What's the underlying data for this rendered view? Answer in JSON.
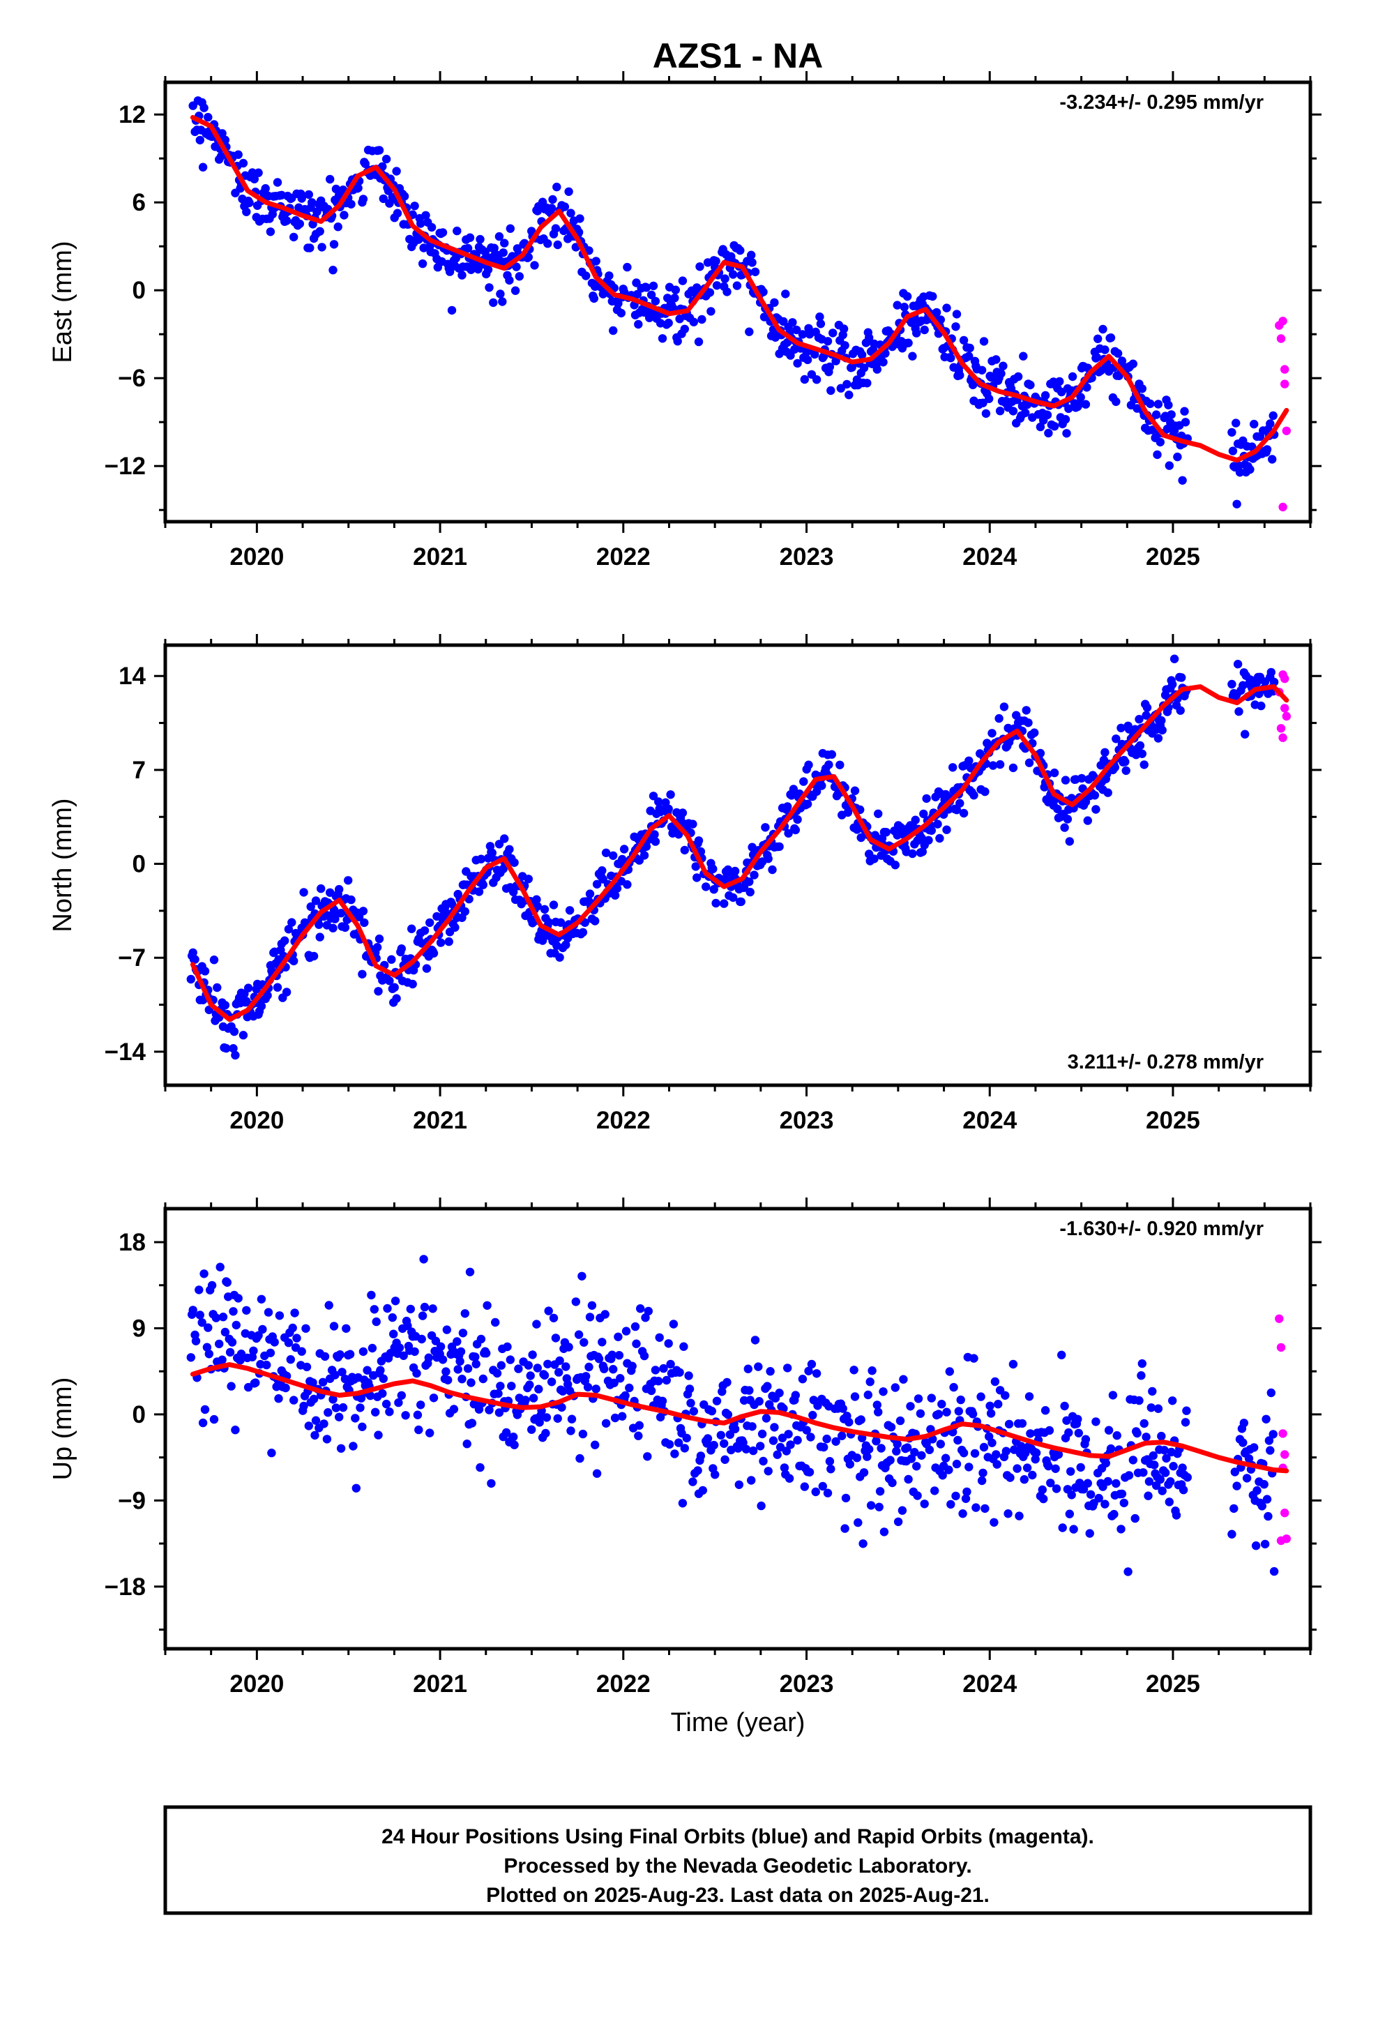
{
  "title": "AZS1 - NA",
  "xlabel": "Time (year)",
  "footer": {
    "line1": "24 Hour Positions Using Final Orbits (blue) and Rapid Orbits (magenta).",
    "line2": "Processed by the Nevada Geodetic Laboratory.",
    "line3": "Plotted on 2025-Aug-23. Last data on 2025-Aug-21."
  },
  "colors": {
    "final": "#0000ff",
    "rapid": "#ff00ff",
    "model": "#ff0000",
    "frame": "#000000"
  },
  "chart_data": [
    {
      "type": "scatter",
      "ylabel": "East (mm)",
      "rate": "-3.234+/- 0.295 mm/yr",
      "rate_position": "top-right",
      "xlim": [
        2019.5,
        2025.75
      ],
      "ylim": [
        -15.8,
        14.2
      ],
      "xticks": [
        2020,
        2021,
        2022,
        2023,
        2024,
        2025
      ],
      "xtick_labels": [
        "2020",
        "2021",
        "2022",
        "2023",
        "2024",
        "2025"
      ],
      "yticks": [
        12,
        6,
        0,
        -6,
        -12
      ],
      "ytick_labels": [
        "12",
        "6",
        "0",
        "−6",
        "−12"
      ],
      "series": [
        {
          "x": [
            2019.65,
            2019.75,
            2019.85,
            2019.95,
            2020.05,
            2020.15,
            2020.25,
            2020.35,
            2020.45,
            2020.55,
            2020.65,
            2020.75,
            2020.85,
            2020.95,
            2021.05,
            2021.15,
            2021.25,
            2021.35,
            2021.45,
            2021.55,
            2021.65,
            2021.75,
            2021.85,
            2021.95,
            2022.05,
            2022.15,
            2022.25,
            2022.35,
            2022.45,
            2022.55,
            2022.65,
            2022.75,
            2022.85,
            2022.95,
            2023.05,
            2023.15,
            2023.25,
            2023.35,
            2023.45,
            2023.55,
            2023.65,
            2023.75,
            2023.85,
            2023.95,
            2024.05,
            2024.15,
            2024.25,
            2024.35,
            2024.45,
            2024.55,
            2024.65,
            2024.75,
            2024.85,
            2024.95,
            2025.05,
            2025.15,
            2025.25,
            2025.35,
            2025.45,
            2025.55,
            2025.62
          ],
          "y": [
            11.8,
            11.2,
            9.0,
            6.8,
            6.0,
            5.6,
            5.1,
            4.7,
            5.8,
            7.8,
            8.4,
            6.9,
            4.4,
            3.4,
            2.9,
            2.4,
            1.9,
            1.5,
            2.4,
            4.3,
            5.4,
            3.5,
            0.9,
            -0.3,
            -0.6,
            -1.1,
            -1.6,
            -1.4,
            0.2,
            1.9,
            1.6,
            -0.6,
            -2.7,
            -3.6,
            -4.0,
            -4.4,
            -4.9,
            -4.7,
            -3.6,
            -1.8,
            -1.3,
            -2.9,
            -5.0,
            -6.4,
            -6.9,
            -7.2,
            -7.6,
            -7.9,
            -7.3,
            -5.6,
            -4.5,
            -5.9,
            -8.3,
            -9.9,
            -10.3,
            -10.6,
            -11.2,
            -11.6,
            -11.0,
            -9.6,
            -8.2
          ]
        }
      ],
      "rapid_points": [
        [
          2025.58,
          -2.4
        ],
        [
          2025.59,
          -3.3
        ],
        [
          2025.6,
          -2.1
        ],
        [
          2025.61,
          -5.4
        ],
        [
          2025.61,
          -6.4
        ],
        [
          2025.62,
          -9.6
        ],
        [
          2025.6,
          -14.8
        ]
      ]
    },
    {
      "type": "scatter",
      "ylabel": "North (mm)",
      "rate": "3.211+/- 0.278 mm/yr",
      "rate_position": "bottom-right",
      "xlim": [
        2019.5,
        2025.75
      ],
      "ylim": [
        -16.5,
        16.3
      ],
      "xticks": [
        2020,
        2021,
        2022,
        2023,
        2024,
        2025
      ],
      "xtick_labels": [
        "2020",
        "2021",
        "2022",
        "2023",
        "2024",
        "2025"
      ],
      "yticks": [
        14,
        7,
        0,
        -7,
        -14
      ],
      "ytick_labels": [
        "14",
        "7",
        "0",
        "−7",
        "−14"
      ],
      "series": [
        {
          "x": [
            2019.65,
            2019.75,
            2019.85,
            2019.95,
            2020.05,
            2020.15,
            2020.25,
            2020.35,
            2020.45,
            2020.55,
            2020.65,
            2020.75,
            2020.85,
            2020.95,
            2021.05,
            2021.15,
            2021.25,
            2021.35,
            2021.45,
            2021.55,
            2021.65,
            2021.75,
            2021.85,
            2021.95,
            2022.05,
            2022.15,
            2022.25,
            2022.35,
            2022.45,
            2022.55,
            2022.65,
            2022.75,
            2022.85,
            2022.95,
            2023.05,
            2023.15,
            2023.25,
            2023.35,
            2023.45,
            2023.55,
            2023.65,
            2023.75,
            2023.85,
            2023.95,
            2024.05,
            2024.15,
            2024.25,
            2024.35,
            2024.45,
            2024.55,
            2024.65,
            2024.75,
            2024.85,
            2024.95,
            2025.05,
            2025.15,
            2025.25,
            2025.35,
            2025.45,
            2025.55,
            2025.62
          ],
          "y": [
            -7.5,
            -10.5,
            -11.6,
            -10.9,
            -9.2,
            -7.3,
            -5.3,
            -3.6,
            -2.7,
            -4.6,
            -7.6,
            -8.3,
            -7.3,
            -5.8,
            -4.1,
            -2.1,
            -0.3,
            0.4,
            -1.9,
            -4.6,
            -5.3,
            -4.4,
            -2.9,
            -1.3,
            0.5,
            2.6,
            3.6,
            2.1,
            -0.7,
            -1.7,
            -1.1,
            0.9,
            2.5,
            4.4,
            6.3,
            6.5,
            4.3,
            1.8,
            1.1,
            1.9,
            2.9,
            4.2,
            5.5,
            7.5,
            9.1,
            9.9,
            8.1,
            5.2,
            4.4,
            5.6,
            7.3,
            8.8,
            10.3,
            11.8,
            13.0,
            13.2,
            12.4,
            12.0,
            13.0,
            13.2,
            12.2
          ]
        }
      ],
      "rapid_points": [
        [
          2025.58,
          12.8
        ],
        [
          2025.59,
          10.1
        ],
        [
          2025.6,
          9.4
        ],
        [
          2025.61,
          13.8
        ],
        [
          2025.61,
          11.6
        ],
        [
          2025.62,
          11.0
        ],
        [
          2025.6,
          14.1
        ]
      ]
    },
    {
      "type": "scatter",
      "ylabel": "Up (mm)",
      "rate": "-1.630+/- 0.920 mm/yr",
      "rate_position": "top-right",
      "xlim": [
        2019.5,
        2025.75
      ],
      "ylim": [
        -24.5,
        21.5
      ],
      "xticks": [
        2020,
        2021,
        2022,
        2023,
        2024,
        2025
      ],
      "xtick_labels": [
        "2020",
        "2021",
        "2022",
        "2023",
        "2024",
        "2025"
      ],
      "yticks": [
        18,
        9,
        0,
        -9,
        -18
      ],
      "ytick_labels": [
        "18",
        "9",
        "0",
        "−9",
        "−18"
      ],
      "series": [
        {
          "x": [
            2019.65,
            2019.75,
            2019.85,
            2019.95,
            2020.05,
            2020.15,
            2020.25,
            2020.35,
            2020.45,
            2020.55,
            2020.65,
            2020.75,
            2020.85,
            2020.95,
            2021.05,
            2021.15,
            2021.25,
            2021.35,
            2021.45,
            2021.55,
            2021.65,
            2021.75,
            2021.85,
            2021.95,
            2022.05,
            2022.15,
            2022.25,
            2022.35,
            2022.45,
            2022.55,
            2022.65,
            2022.75,
            2022.85,
            2022.95,
            2023.05,
            2023.15,
            2023.25,
            2023.35,
            2023.45,
            2023.55,
            2023.65,
            2023.75,
            2023.85,
            2023.95,
            2024.05,
            2024.15,
            2024.25,
            2024.35,
            2024.45,
            2024.55,
            2024.65,
            2024.75,
            2024.85,
            2024.95,
            2025.05,
            2025.15,
            2025.25,
            2025.35,
            2025.45,
            2025.55,
            2025.62
          ],
          "y": [
            4.2,
            4.8,
            5.2,
            4.8,
            4.2,
            3.6,
            3.0,
            2.4,
            2.0,
            2.2,
            2.7,
            3.2,
            3.5,
            3.0,
            2.3,
            1.8,
            1.4,
            1.0,
            0.7,
            0.8,
            1.3,
            2.1,
            2.0,
            1.5,
            1.0,
            0.6,
            0.2,
            -0.3,
            -0.7,
            -0.9,
            -0.2,
            0.3,
            0.2,
            -0.3,
            -0.9,
            -1.4,
            -1.8,
            -2.1,
            -2.4,
            -2.6,
            -2.3,
            -1.6,
            -1.0,
            -1.2,
            -1.8,
            -2.4,
            -3.0,
            -3.5,
            -3.9,
            -4.3,
            -4.4,
            -3.7,
            -3.0,
            -2.9,
            -3.3,
            -3.9,
            -4.5,
            -5.0,
            -5.4,
            -5.8,
            -5.9
          ]
        }
      ],
      "rapid_points": [
        [
          2025.58,
          10.0
        ],
        [
          2025.59,
          7.0
        ],
        [
          2025.6,
          -2.0
        ],
        [
          2025.61,
          -4.2
        ],
        [
          2025.6,
          -5.6
        ],
        [
          2025.61,
          -10.3
        ],
        [
          2025.62,
          -13.0
        ],
        [
          2025.59,
          -13.2
        ]
      ]
    }
  ]
}
